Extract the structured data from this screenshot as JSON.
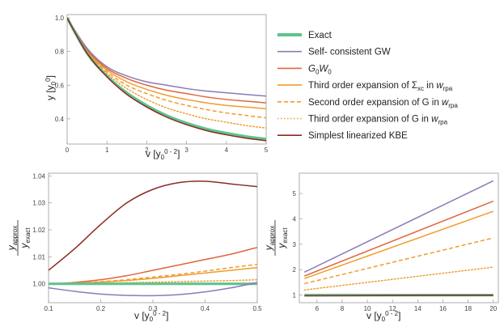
{
  "legend": [
    {
      "label": "Exact",
      "color": "#5fc38f",
      "dash": "solid"
    },
    {
      "label": "Self- consistent GW",
      "color": "#8c7ab6",
      "dash": "solid"
    },
    {
      "label": "G0W0",
      "color": "#e0653c",
      "dash": "solid"
    },
    {
      "label": "Third order expansion of Σxc in wrpa",
      "color": "#f19b2c",
      "dash": "solid"
    },
    {
      "label": "Second order expansion of G in wrpa",
      "color": "#f19b2c",
      "dash": "dashed"
    },
    {
      "label": "Third order expansion of G in wrpa",
      "color": "#f19b2c",
      "dash": "dotted"
    },
    {
      "label": "Simplest linearized KBE",
      "color": "#8b2a22",
      "dash": "solid"
    }
  ],
  "chart_data": [
    {
      "type": "line",
      "id": "top",
      "xlabel": "v [y0^(0-2)]",
      "ylabel": "y [y0^(0)]",
      "xlim": [
        0,
        5
      ],
      "ylim": [
        0.25,
        1.02
      ],
      "xticks": [
        "0",
        "1",
        "2",
        "3",
        "4",
        "5"
      ],
      "yticks": [
        "0.4",
        "0.6",
        "0.8",
        "1.0"
      ],
      "x": [
        0,
        0.5,
        1,
        1.5,
        2,
        2.5,
        3,
        3.5,
        4,
        4.5,
        5
      ],
      "series": [
        {
          "name": "Self- consistent GW",
          "values": [
            1.0,
            0.82,
            0.71,
            0.655,
            0.62,
            0.6,
            0.58,
            0.565,
            0.555,
            0.545,
            0.535
          ]
        },
        {
          "name": "G0W0",
          "values": [
            1.0,
            0.81,
            0.7,
            0.64,
            0.6,
            0.57,
            0.55,
            0.53,
            0.515,
            0.505,
            0.495
          ]
        },
        {
          "name": "Third order expansion of Σxc in wrpa",
          "values": [
            1.0,
            0.8,
            0.69,
            0.62,
            0.575,
            0.54,
            0.515,
            0.495,
            0.48,
            0.47,
            0.46
          ]
        },
        {
          "name": "Second order expansion of G in wrpa",
          "values": [
            1.0,
            0.8,
            0.68,
            0.6,
            0.55,
            0.51,
            0.48,
            0.455,
            0.435,
            0.42,
            0.405
          ]
        },
        {
          "name": "Third order expansion of G in wrpa",
          "values": [
            1.0,
            0.8,
            0.67,
            0.58,
            0.515,
            0.465,
            0.43,
            0.4,
            0.38,
            0.36,
            0.345
          ]
        },
        {
          "name": "Exact",
          "values": [
            1.0,
            0.79,
            0.655,
            0.555,
            0.48,
            0.42,
            0.375,
            0.34,
            0.315,
            0.295,
            0.28
          ]
        },
        {
          "name": "Simplest linearized KBE",
          "values": [
            1.0,
            0.79,
            0.65,
            0.545,
            0.47,
            0.41,
            0.365,
            0.33,
            0.305,
            0.285,
            0.27
          ]
        }
      ]
    },
    {
      "type": "line",
      "id": "bottom-left",
      "xlabel": "v [y0^(0-2)]",
      "ylabel": "y_approx / y_exact",
      "xlim": [
        0.1,
        0.5
      ],
      "ylim": [
        0.993,
        1.041
      ],
      "xticks": [
        "0.1",
        "0.2",
        "0.3",
        "0.4",
        "0.5"
      ],
      "yticks": [
        "1.00",
        "1.01",
        "1.02",
        "1.03",
        "1.04"
      ],
      "x": [
        0.1,
        0.15,
        0.2,
        0.25,
        0.3,
        0.35,
        0.4,
        0.45,
        0.5
      ],
      "series": [
        {
          "name": "Simplest linearized KBE",
          "values": [
            1.005,
            1.013,
            1.022,
            1.03,
            1.035,
            1.0375,
            1.038,
            1.037,
            1.036
          ]
        },
        {
          "name": "G0W0",
          "values": [
            1.0,
            1.0005,
            1.0015,
            1.003,
            1.005,
            1.007,
            1.009,
            1.011,
            1.0135
          ]
        },
        {
          "name": "Second order expansion of G in wrpa",
          "values": [
            1.0,
            1.0003,
            1.0008,
            1.0015,
            1.0025,
            1.0035,
            1.0047,
            1.006,
            1.0072
          ]
        },
        {
          "name": "Third order expansion of Σxc in wrpa",
          "values": [
            1.0,
            1.0002,
            1.0006,
            1.0012,
            1.002,
            1.003,
            1.004,
            1.005,
            1.006
          ]
        },
        {
          "name": "Third order expansion of G in wrpa",
          "values": [
            1.0,
            1.0001,
            1.0002,
            1.0004,
            1.0006,
            1.0008,
            1.001,
            1.0012,
            1.0015
          ]
        },
        {
          "name": "Exact",
          "values": [
            1.0,
            1.0,
            1.0,
            1.0,
            1.0,
            1.0,
            1.0,
            1.0,
            1.0
          ]
        },
        {
          "name": "Self- consistent GW",
          "values": [
            0.9985,
            0.9972,
            0.9962,
            0.9957,
            0.9956,
            0.996,
            0.997,
            0.9985,
            1.0005
          ]
        }
      ]
    },
    {
      "type": "line",
      "id": "bottom-right",
      "xlabel": "v [y0^(0-2)]",
      "ylabel": "y_approx / y_exact",
      "xlim": [
        4.6,
        20.4
      ],
      "ylim": [
        0.7,
        5.8
      ],
      "xticks": [
        "6",
        "8",
        "10",
        "12",
        "14",
        "16",
        "18",
        "20"
      ],
      "yticks": [
        "1",
        "2",
        "3",
        "4",
        "5"
      ],
      "x": [
        5,
        20
      ],
      "series": [
        {
          "name": "Self- consistent GW",
          "values": [
            1.9,
            5.5
          ]
        },
        {
          "name": "G0W0",
          "values": [
            1.75,
            4.7
          ]
        },
        {
          "name": "Third order expansion of Σxc in wrpa",
          "values": [
            1.65,
            4.3
          ]
        },
        {
          "name": "Second order expansion of G in wrpa",
          "values": [
            1.45,
            3.25
          ]
        },
        {
          "name": "Third order expansion of G in wrpa",
          "values": [
            1.2,
            2.1
          ]
        },
        {
          "name": "Exact",
          "values": [
            1.0,
            1.0
          ]
        },
        {
          "name": "Simplest linearized KBE",
          "values": [
            0.97,
            0.99
          ]
        }
      ]
    }
  ]
}
